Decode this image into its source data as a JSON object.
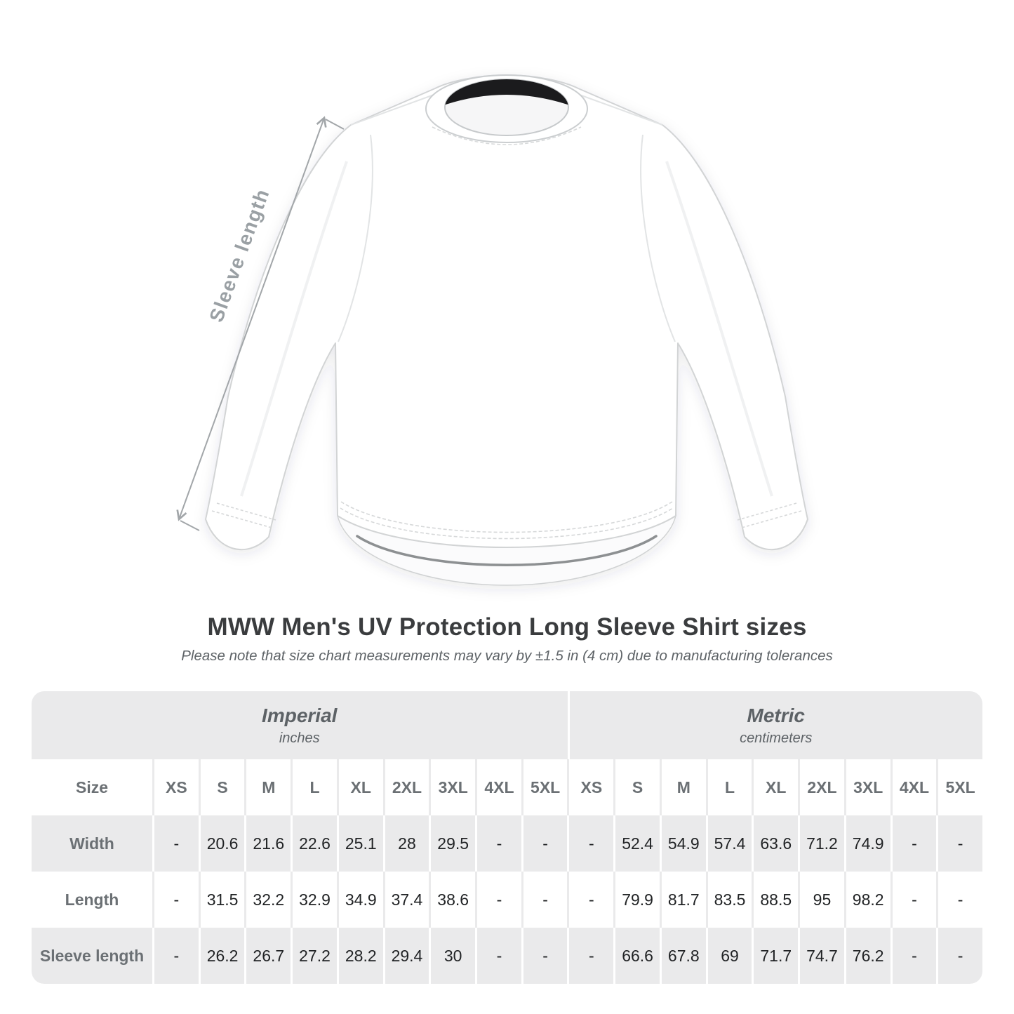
{
  "figure": {
    "sleeve_label": "Sleeve length"
  },
  "heading": {
    "title": "MWW Men's UV Protection Long Sleeve Shirt sizes",
    "subtitle": "Please note that size chart measurements may vary by ±1.5 in (4 cm) due to manufacturing tolerances"
  },
  "chart_data": {
    "type": "table",
    "title": "MWW Men's UV Protection Long Sleeve Shirt sizes",
    "subtitle": "Please note that size chart measurements may vary by ±1.5 in (4 cm) due to manufacturing tolerances",
    "groups": [
      {
        "label": "Imperial",
        "unit": "inches"
      },
      {
        "label": "Metric",
        "unit": "centimeters"
      }
    ],
    "corner_header": "Size",
    "sizes": [
      "XS",
      "S",
      "M",
      "L",
      "XL",
      "2XL",
      "3XL",
      "4XL",
      "5XL"
    ],
    "rows": [
      {
        "label": "Width",
        "imperial": [
          "-",
          "20.6",
          "21.6",
          "22.6",
          "25.1",
          "28",
          "29.5",
          "-",
          "-"
        ],
        "metric": [
          "-",
          "52.4",
          "54.9",
          "57.4",
          "63.6",
          "71.2",
          "74.9",
          "-",
          "-"
        ]
      },
      {
        "label": "Length",
        "imperial": [
          "-",
          "31.5",
          "32.2",
          "32.9",
          "34.9",
          "37.4",
          "38.6",
          "-",
          "-"
        ],
        "metric": [
          "-",
          "79.9",
          "81.7",
          "83.5",
          "88.5",
          "95",
          "98.2",
          "-",
          "-"
        ]
      },
      {
        "label": "Sleeve length",
        "imperial": [
          "-",
          "26.2",
          "26.7",
          "27.2",
          "28.2",
          "29.4",
          "30",
          "-",
          "-"
        ],
        "metric": [
          "-",
          "66.6",
          "67.8",
          "69",
          "71.7",
          "74.7",
          "76.2",
          "-",
          "-"
        ]
      }
    ]
  },
  "colors": {
    "background": "#ffffff",
    "table_band": "#eaeaeb",
    "row_stripe": "#eaeaeb",
    "header_text": "#6b7074",
    "group_text": "#5d6266",
    "value_text": "#212325",
    "title_text": "#3a3c3e",
    "annotation": "#9aa0a4",
    "shirt_outline": "#d2d4d5",
    "collar_tape": "#1b1b1d",
    "back_hem_edge": "#8d9092"
  }
}
